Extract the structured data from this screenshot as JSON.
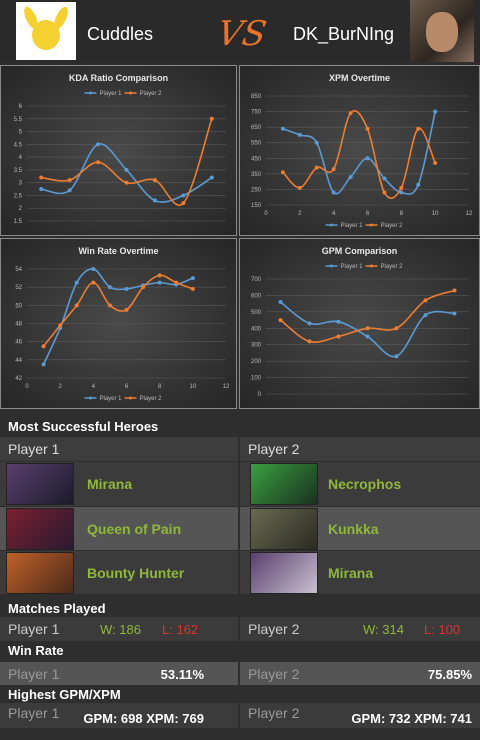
{
  "header": {
    "player1": "Cuddles",
    "vs": "VS",
    "player2": "DK_BurNIng"
  },
  "chart_data": [
    {
      "type": "line",
      "title": "KDA Ratio Comparison",
      "categories": [
        null,
        null,
        null,
        null,
        null,
        null,
        null
      ],
      "series": [
        {
          "name": "Player 1",
          "color": "#5b9bd5",
          "values": [
            2.75,
            2.7,
            4.5,
            3.5,
            2.3,
            2.5,
            3.2
          ]
        },
        {
          "name": "Player 2",
          "color": "#ed7d31",
          "values": [
            3.2,
            3.1,
            3.8,
            3.0,
            3.1,
            2.2,
            5.5
          ]
        }
      ],
      "ylim": [
        1.5,
        6
      ],
      "yticks": [
        1.5,
        2,
        2.5,
        3,
        3.5,
        4,
        4.5,
        5,
        5.5,
        6
      ],
      "grid": true,
      "legend": "top"
    },
    {
      "type": "line",
      "title": "XPM  Overtime",
      "x": [
        1,
        2,
        3,
        4,
        5,
        6,
        7,
        8,
        9,
        10
      ],
      "series": [
        {
          "name": "Player 1",
          "color": "#5b9bd5",
          "values": [
            640,
            600,
            550,
            230,
            330,
            450,
            320,
            230,
            280,
            750
          ]
        },
        {
          "name": "Player 2",
          "color": "#ed7d31",
          "values": [
            360,
            260,
            390,
            380,
            740,
            640,
            230,
            260,
            640,
            420
          ]
        }
      ],
      "xlim": [
        0,
        12
      ],
      "xticks": [
        0,
        2,
        4,
        6,
        8,
        10,
        12
      ],
      "ylim": [
        150,
        850
      ],
      "yticks": [
        150,
        250,
        350,
        450,
        550,
        650,
        750,
        850
      ],
      "grid": true,
      "legend": "bottom"
    },
    {
      "type": "line",
      "title": "Win Rate  Overtime",
      "x": [
        1,
        2,
        3,
        4,
        5,
        6,
        7,
        8,
        9,
        10
      ],
      "series": [
        {
          "name": "Player 1",
          "color": "#5b9bd5",
          "values": [
            43.5,
            47.5,
            52.5,
            54,
            52,
            51.8,
            52.2,
            52.5,
            52.3,
            53
          ]
        },
        {
          "name": "Player 2",
          "color": "#ed7d31",
          "values": [
            45.5,
            47.8,
            50,
            52.5,
            50,
            49.5,
            52,
            53.3,
            52.5,
            51.8
          ]
        }
      ],
      "xlim": [
        0,
        12
      ],
      "xticks": [
        0,
        2,
        4,
        6,
        8,
        10,
        12
      ],
      "ylim": [
        42,
        54
      ],
      "yticks": [
        42,
        44,
        46,
        48,
        50,
        52,
        54
      ],
      "grid": true,
      "legend": "bottom"
    },
    {
      "type": "line",
      "title": "GPM Comparison",
      "categories": [
        null,
        null,
        null,
        null,
        null,
        null,
        null
      ],
      "series": [
        {
          "name": "Player 1",
          "color": "#5b9bd5",
          "values": [
            560,
            430,
            440,
            350,
            230,
            480,
            490
          ]
        },
        {
          "name": "Player 2",
          "color": "#ed7d31",
          "values": [
            450,
            320,
            350,
            400,
            400,
            570,
            630
          ]
        }
      ],
      "ylim": [
        0,
        700
      ],
      "yticks": [
        0,
        100,
        200,
        300,
        400,
        500,
        600,
        700
      ],
      "grid": true,
      "legend": "top"
    }
  ],
  "heroes": {
    "title": "Most Successful Heroes",
    "player1": {
      "label": "Player 1",
      "heroes": [
        "Mirana",
        "Queen of Pain",
        "Bounty Hunter"
      ]
    },
    "player2": {
      "label": "Player 2",
      "heroes": [
        "Necrophos",
        "Kunkka",
        "Mirana"
      ]
    }
  },
  "matches": {
    "title": "Matches Played",
    "rows": [
      {
        "player": "Player 1",
        "wins": "W: 186",
        "losses": "L: 162"
      },
      {
        "player": "Player 2",
        "wins": "W: 314",
        "losses": "L: 100"
      }
    ]
  },
  "win_rate": {
    "title": "Win Rate",
    "rows": [
      {
        "player": "Player 1",
        "value": "53.11%"
      },
      {
        "player": "Player 2",
        "value": "75.85%"
      }
    ]
  },
  "highest": {
    "title": "Highest GPM/XPM",
    "rows": [
      {
        "player": "Player 1",
        "value": "GPM: 698 XPM: 769"
      },
      {
        "player": "Player 2",
        "value": "GPM: 732 XPM: 741"
      }
    ]
  }
}
